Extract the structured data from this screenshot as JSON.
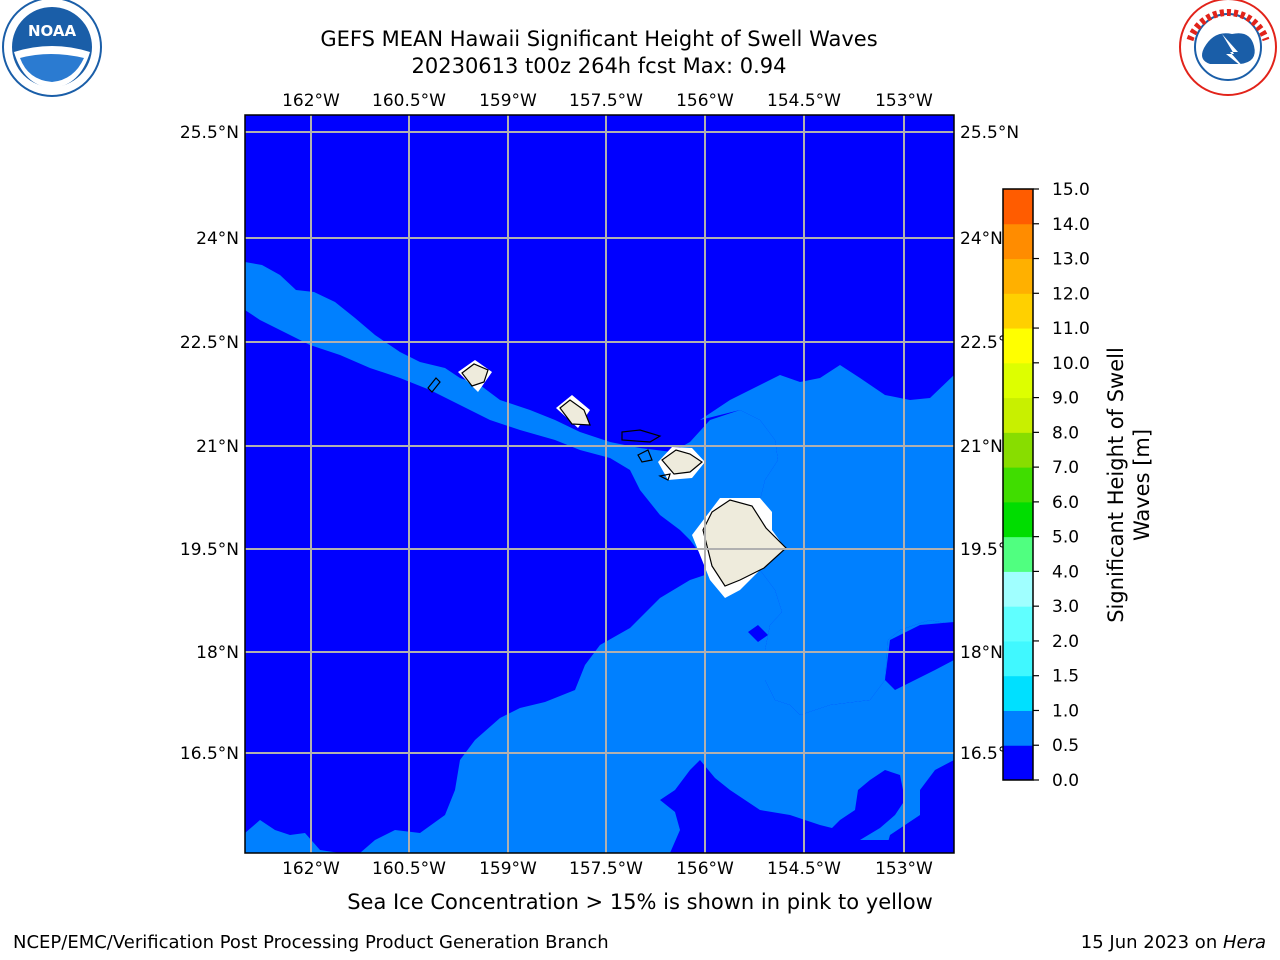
{
  "header": {
    "title_line1": "GEFS MEAN Hawaii Significant Height of Swell Waves",
    "title_line2": "20230613 t00z 264h fcst   Max: 0.94"
  },
  "logos": {
    "left": {
      "name": "noaa-logo",
      "text": "NOAA",
      "ring_text": "NATIONAL OCEANIC AND ATMOSPHERIC ADMINISTRATION · U.S. DEPARTMENT OF COMMERCE",
      "color": "#1a5ea8"
    },
    "right": {
      "name": "nws-logo",
      "ring_text": "NATIONAL WEATHER SERVICE",
      "color": "#e2231a"
    }
  },
  "map": {
    "lon_ticks": [
      "162°W",
      "160.5°W",
      "159°W",
      "157.5°W",
      "156°W",
      "154.5°W",
      "153°W"
    ],
    "lat_ticks": [
      "25.5°N",
      "24°N",
      "22.5°N",
      "21°N",
      "19.5°N",
      "18°N",
      "16.5°N"
    ],
    "colors": {
      "deep_blue": "#0000ff",
      "light_blue": "#0080ff",
      "land": "#eeebdc",
      "grid": "#b0b0b0"
    }
  },
  "colorbar": {
    "label": "Significant Height of Swell Waves [m]",
    "label_line1": "Significant Height of Swell",
    "label_line2": "Waves [m]",
    "ticks": [
      "0.0",
      "0.5",
      "1.0",
      "1.5",
      "2.0",
      "3.0",
      "4.0",
      "5.0",
      "6.0",
      "7.0",
      "8.0",
      "9.0",
      "10.0",
      "11.0",
      "12.0",
      "13.0",
      "14.0",
      "15.0"
    ],
    "colors": [
      "#0000ff",
      "#0080ff",
      "#00e0ff",
      "#40f8ff",
      "#60ffff",
      "#a0ffff",
      "#50ff80",
      "#00dd00",
      "#40dd00",
      "#88dd00",
      "#c8f000",
      "#ddff00",
      "#ffff00",
      "#ffd000",
      "#ffb000",
      "#ff8c00",
      "#ff5c00",
      "#ff2a00",
      "#ff0000"
    ]
  },
  "note": "Sea Ice Concentration > 15% is shown in pink to yellow",
  "footer": {
    "left": "NCEP/EMC/Verification Post Processing Product Generation Branch",
    "right_prefix": "15 Jun 2023 on ",
    "right_host": "Hera"
  }
}
